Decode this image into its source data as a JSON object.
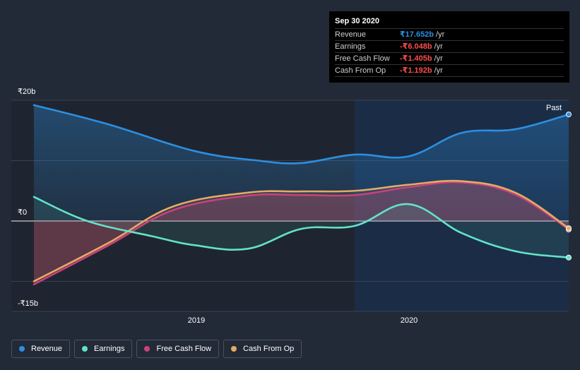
{
  "chart_data": {
    "type": "area",
    "y_axis": {
      "labels": [
        "₹20b",
        "₹0",
        "-₹15b"
      ],
      "ylim": [
        -15,
        20
      ]
    },
    "x_axis": {
      "labels": [
        "2019",
        "2020"
      ]
    },
    "past_label": "Past",
    "series": [
      {
        "name": "Revenue",
        "color": "#2d8fe0",
        "x": [
          2018.25,
          2018.6,
          2019.0,
          2019.3,
          2019.5,
          2019.75,
          2020.0,
          2020.25,
          2020.5,
          2020.75
        ],
        "values": [
          19.2,
          16.0,
          11.6,
          10.0,
          9.6,
          11.0,
          10.7,
          14.6,
          15.2,
          17.652
        ]
      },
      {
        "name": "Earnings",
        "color": "#62e3c8",
        "x": [
          2018.25,
          2018.5,
          2018.8,
          2019.0,
          2019.25,
          2019.5,
          2019.75,
          2020.0,
          2020.25,
          2020.5,
          2020.75
        ],
        "values": [
          4.0,
          0.0,
          -2.5,
          -4.0,
          -4.6,
          -1.3,
          -0.8,
          2.8,
          -2.0,
          -5.0,
          -6.048
        ]
      },
      {
        "name": "Free Cash Flow",
        "color": "#c9427a",
        "x": [
          2018.25,
          2018.6,
          2018.9,
          2019.25,
          2019.5,
          2019.75,
          2020.0,
          2020.25,
          2020.5,
          2020.75
        ],
        "values": [
          -10.5,
          -4.0,
          1.8,
          4.2,
          4.3,
          4.3,
          5.6,
          6.4,
          4.4,
          -1.405
        ]
      },
      {
        "name": "Cash From Op",
        "color": "#e3ab66",
        "x": [
          2018.25,
          2018.6,
          2018.9,
          2019.25,
          2019.5,
          2019.75,
          2020.0,
          2020.25,
          2020.5,
          2020.75
        ],
        "values": [
          -10.0,
          -3.6,
          2.4,
          4.7,
          4.9,
          5.0,
          6.0,
          6.6,
          4.7,
          -1.192
        ]
      }
    ]
  },
  "tooltip": {
    "date": "Sep 30 2020",
    "rows": [
      {
        "label": "Revenue",
        "value": "₹17.652b",
        "unit": "/yr",
        "color": "#2d8fe0"
      },
      {
        "label": "Earnings",
        "value": "-₹6.048b",
        "unit": "/yr",
        "color": "#ff4d4d"
      },
      {
        "label": "Free Cash Flow",
        "value": "-₹1.405b",
        "unit": "/yr",
        "color": "#ff4d4d"
      },
      {
        "label": "Cash From Op",
        "value": "-₹1.192b",
        "unit": "/yr",
        "color": "#ff4d4d"
      }
    ]
  },
  "legend": [
    {
      "label": "Revenue",
      "color": "#2d8fe0"
    },
    {
      "label": "Earnings",
      "color": "#62e3c8"
    },
    {
      "label": "Free Cash Flow",
      "color": "#c9427a"
    },
    {
      "label": "Cash From Op",
      "color": "#e3ab66"
    }
  ]
}
